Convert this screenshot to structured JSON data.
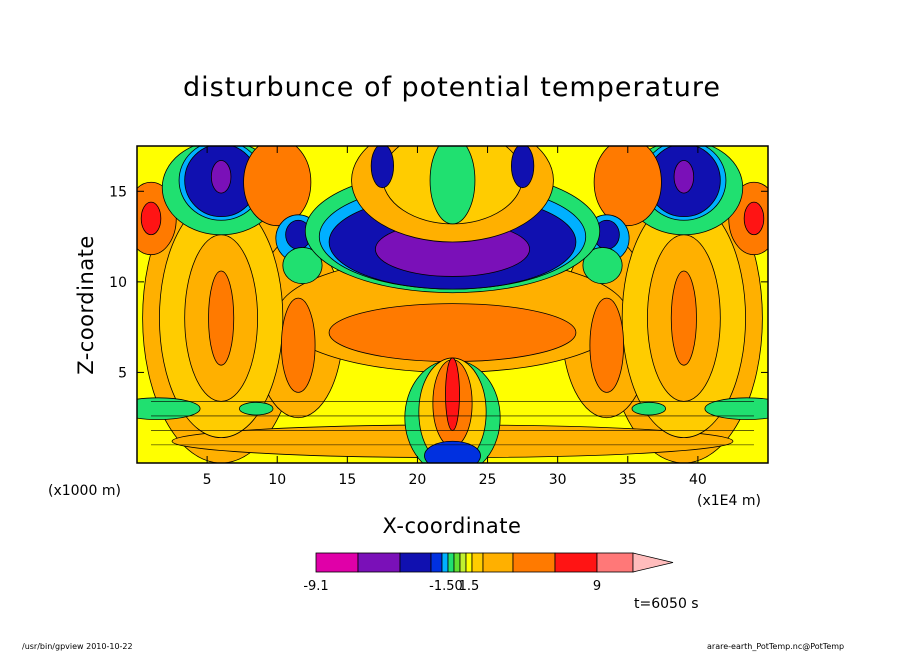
{
  "chart_data": {
    "type": "heatmap",
    "title": "disturbunce of potential temperature",
    "xlabel": "X-coordinate",
    "ylabel": "Z-coordinate",
    "x_unit": "(x1E4 m)",
    "y_unit": "(x1000 m)",
    "xlim": [
      0,
      45
    ],
    "ylim": [
      0,
      17.5
    ],
    "x_ticks": [
      5,
      10,
      15,
      20,
      25,
      30,
      35,
      40
    ],
    "y_ticks": [
      5,
      10,
      15
    ],
    "colorbar": {
      "colors": [
        "#e000a8",
        "#7a10b8",
        "#1010b0",
        "#0030e0",
        "#00b0ff",
        "#20e070",
        "#60e030",
        "#c0f030",
        "#ffff00",
        "#ffcc00",
        "#ffb000",
        "#ff7a00",
        "#ff1414",
        "#ff7878",
        "#ffbcbc"
      ],
      "labels": [
        "-9.1",
        "-1.50",
        "1.5",
        "9"
      ],
      "label_values": [
        -9.1,
        -1.5,
        1.5,
        9
      ]
    },
    "annotation": "t=6050 s"
  },
  "footer": {
    "left": "/usr/bin/gpview   2010-10-22",
    "right": "arare-earth_PotTemp.nc@PotTemp"
  }
}
